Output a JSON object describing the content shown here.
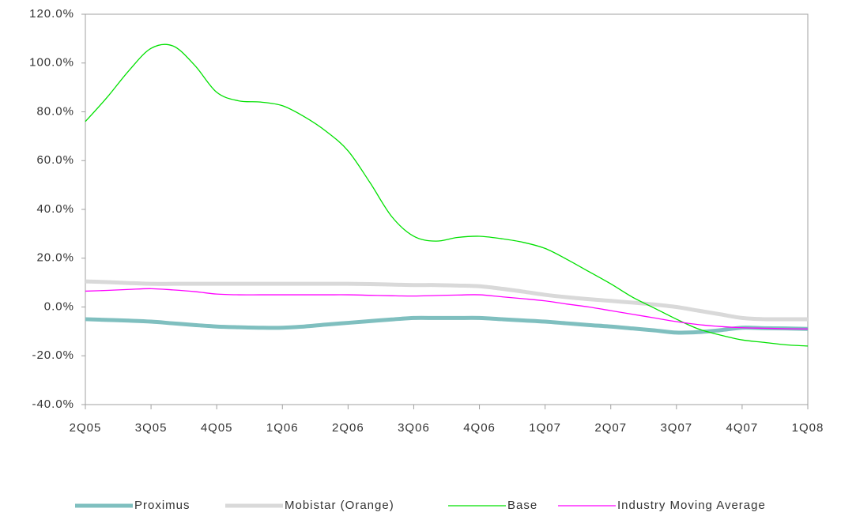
{
  "chart_data": {
    "type": "line",
    "categories": [
      "2Q05",
      null,
      null,
      "3Q05",
      null,
      null,
      "4Q05",
      null,
      null,
      "1Q06",
      null,
      null,
      "2Q06",
      null,
      null,
      "3Q06",
      null,
      null,
      "4Q06",
      null,
      null,
      "1Q07",
      null,
      null,
      "2Q07",
      null,
      null,
      "3Q07",
      null,
      null,
      "4Q07",
      null,
      null,
      "1Q08"
    ],
    "series": [
      {
        "name": "Proximus",
        "color": "#7fbfbf",
        "values": [
          -5,
          -5.3,
          -5.6,
          -6,
          -6.7,
          -7.4,
          -8,
          -8.3,
          -8.5,
          -8.5,
          -8,
          -7.2,
          -6.5,
          -5.8,
          -5.1,
          -4.5,
          -4.5,
          -4.5,
          -4.5,
          -5,
          -5.5,
          -6,
          -6.7,
          -7.4,
          -8,
          -8.8,
          -9.6,
          -10.5,
          -10.3,
          -9.5,
          -8.5,
          -8.7,
          -8.8,
          -9
        ]
      },
      {
        "name": "Mobistar (Orange)",
        "color": "#d9d9d9",
        "values": [
          10.5,
          10.2,
          9.8,
          9.5,
          9.5,
          9.5,
          9.5,
          9.5,
          9.5,
          9.5,
          9.5,
          9.5,
          9.5,
          9.4,
          9.2,
          9,
          9,
          8.8,
          8.5,
          7.5,
          6.3,
          5,
          4,
          3.2,
          2.5,
          1.8,
          1,
          0,
          -1.5,
          -3,
          -4.5,
          -5,
          -5,
          -5
        ]
      },
      {
        "name": "Base",
        "color": "#00e000",
        "values": [
          76,
          86,
          97,
          106,
          107,
          99,
          88,
          84.5,
          84,
          82.5,
          78,
          72,
          64,
          51,
          37,
          29,
          27,
          28.5,
          29,
          28,
          26.5,
          24,
          19.5,
          14.5,
          9.5,
          4,
          -0.5,
          -5,
          -9,
          -11.5,
          -13.5,
          -14.5,
          -15.5,
          -16
        ]
      },
      {
        "name": "Industry Moving Average",
        "color": "#ff00ff",
        "values": [
          6.5,
          6.8,
          7.2,
          7.5,
          7,
          6.3,
          5.3,
          5,
          5,
          5,
          5,
          5,
          5,
          4.8,
          4.6,
          4.5,
          4.7,
          4.9,
          5,
          4.2,
          3.4,
          2.5,
          1.2,
          0,
          -1.5,
          -3,
          -4.5,
          -6,
          -7.2,
          -8,
          -8.5,
          -8.7,
          -8.9,
          -9
        ]
      }
    ],
    "ylim": [
      -40,
      120
    ],
    "yticks": [
      {
        "value": -40,
        "label": "-40.0%"
      },
      {
        "value": -20,
        "label": "-20.0%"
      },
      {
        "value": 0,
        "label": "0.0%"
      },
      {
        "value": 20,
        "label": "20.0%"
      },
      {
        "value": 40,
        "label": "40.0%"
      },
      {
        "value": 60,
        "label": "60.0%"
      },
      {
        "value": 80,
        "label": "80.0%"
      },
      {
        "value": 100,
        "label": "100.0%"
      },
      {
        "value": 120,
        "label": "120.0%"
      }
    ],
    "legend": "bottom"
  }
}
